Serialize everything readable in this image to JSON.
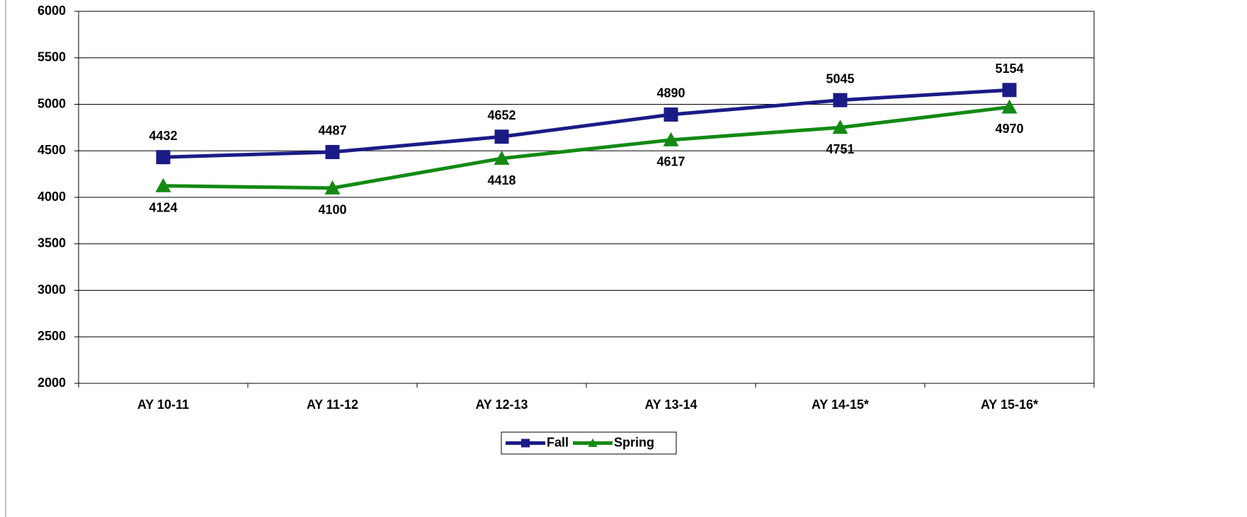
{
  "chart_data": {
    "type": "line",
    "categories": [
      "AY 10-11",
      "AY 11-12",
      "AY 12-13",
      "AY 13-14",
      "AY 14-15*",
      "AY 15-16*"
    ],
    "series": [
      {
        "name": "Fall",
        "color": "#1b1b86",
        "values": [
          4432,
          4487,
          4652,
          4890,
          5045,
          5154
        ]
      },
      {
        "name": "Spring",
        "color": "#138a13",
        "values": [
          4124,
          4100,
          4418,
          4617,
          4751,
          4970
        ]
      }
    ],
    "ylim": [
      2000,
      6000
    ],
    "yticks": [
      2000,
      2500,
      3000,
      3500,
      4000,
      4500,
      5000,
      5500,
      6000
    ],
    "grid": true,
    "legend": "bottom"
  }
}
